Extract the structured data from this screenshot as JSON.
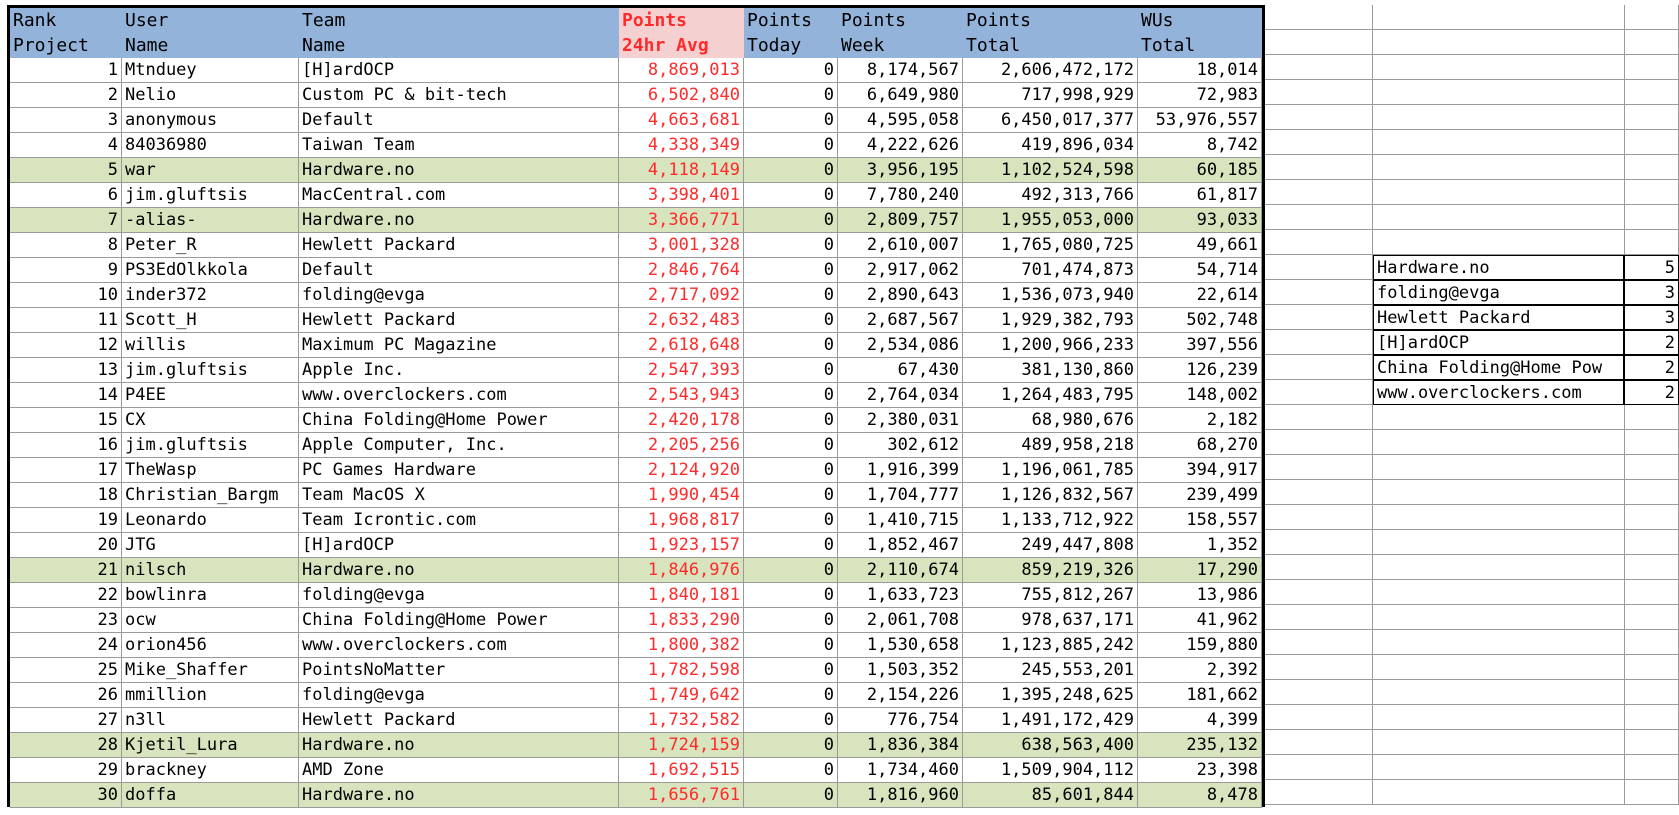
{
  "header": {
    "rank": [
      "Rank",
      "Project"
    ],
    "user": [
      "User",
      "Name"
    ],
    "team": [
      "Team",
      "Name"
    ],
    "pts24": [
      "Points",
      "24hr Avg"
    ],
    "today": [
      "Points",
      "Today"
    ],
    "week": [
      "Points",
      "Week"
    ],
    "total": [
      "Points",
      "Total"
    ],
    "wus": [
      "WUs",
      "Total"
    ]
  },
  "rows": [
    {
      "rank": "1",
      "user": "Mtnduey",
      "team": "[H]ardOCP",
      "pts24": "8,869,013",
      "today": "0",
      "week": "8,174,567",
      "total": "2,606,472,172",
      "wus": "18,014",
      "hl": false
    },
    {
      "rank": "2",
      "user": "Nelio",
      "team": "Custom PC & bit-tech",
      "pts24": "6,502,840",
      "today": "0",
      "week": "6,649,980",
      "total": "717,998,929",
      "wus": "72,983",
      "hl": false
    },
    {
      "rank": "3",
      "user": "anonymous",
      "team": "Default",
      "pts24": "4,663,681",
      "today": "0",
      "week": "4,595,058",
      "total": "6,450,017,377",
      "wus": "53,976,557",
      "hl": false
    },
    {
      "rank": "4",
      "user": "84036980",
      "team": "Taiwan Team",
      "pts24": "4,338,349",
      "today": "0",
      "week": "4,222,626",
      "total": "419,896,034",
      "wus": "8,742",
      "hl": false
    },
    {
      "rank": "5",
      "user": "war",
      "team": "Hardware.no",
      "pts24": "4,118,149",
      "today": "0",
      "week": "3,956,195",
      "total": "1,102,524,598",
      "wus": "60,185",
      "hl": true
    },
    {
      "rank": "6",
      "user": "jim.gluftsis",
      "team": "MacCentral.com",
      "pts24": "3,398,401",
      "today": "0",
      "week": "7,780,240",
      "total": "492,313,766",
      "wus": "61,817",
      "hl": false
    },
    {
      "rank": "7",
      "user": "-alias-",
      "team": "Hardware.no",
      "pts24": "3,366,771",
      "today": "0",
      "week": "2,809,757",
      "total": "1,955,053,000",
      "wus": "93,033",
      "hl": true
    },
    {
      "rank": "8",
      "user": "Peter_R",
      "team": "Hewlett Packard",
      "pts24": "3,001,328",
      "today": "0",
      "week": "2,610,007",
      "total": "1,765,080,725",
      "wus": "49,661",
      "hl": false
    },
    {
      "rank": "9",
      "user": "PS3EdOlkkola",
      "team": "Default",
      "pts24": "2,846,764",
      "today": "0",
      "week": "2,917,062",
      "total": "701,474,873",
      "wus": "54,714",
      "hl": false
    },
    {
      "rank": "10",
      "user": "inder372",
      "team": "folding@evga",
      "pts24": "2,717,092",
      "today": "0",
      "week": "2,890,643",
      "total": "1,536,073,940",
      "wus": "22,614",
      "hl": false
    },
    {
      "rank": "11",
      "user": "Scott_H",
      "team": "Hewlett Packard",
      "pts24": "2,632,483",
      "today": "0",
      "week": "2,687,567",
      "total": "1,929,382,793",
      "wus": "502,748",
      "hl": false
    },
    {
      "rank": "12",
      "user": "willis",
      "team": "Maximum PC Magazine",
      "pts24": "2,618,648",
      "today": "0",
      "week": "2,534,086",
      "total": "1,200,966,233",
      "wus": "397,556",
      "hl": false
    },
    {
      "rank": "13",
      "user": "jim.gluftsis",
      "team": "Apple Inc.",
      "pts24": "2,547,393",
      "today": "0",
      "week": "67,430",
      "total": "381,130,860",
      "wus": "126,239",
      "hl": false
    },
    {
      "rank": "14",
      "user": "P4EE",
      "team": "www.overclockers.com",
      "pts24": "2,543,943",
      "today": "0",
      "week": "2,764,034",
      "total": "1,264,483,795",
      "wus": "148,002",
      "hl": false
    },
    {
      "rank": "15",
      "user": "CX",
      "team": "China Folding@Home Power",
      "pts24": "2,420,178",
      "today": "0",
      "week": "2,380,031",
      "total": "68,980,676",
      "wus": "2,182",
      "hl": false
    },
    {
      "rank": "16",
      "user": "jim.gluftsis",
      "team": "Apple Computer, Inc.",
      "pts24": "2,205,256",
      "today": "0",
      "week": "302,612",
      "total": "489,958,218",
      "wus": "68,270",
      "hl": false
    },
    {
      "rank": "17",
      "user": "TheWasp",
      "team": "PC Games Hardware",
      "pts24": "2,124,920",
      "today": "0",
      "week": "1,916,399",
      "total": "1,196,061,785",
      "wus": "394,917",
      "hl": false
    },
    {
      "rank": "18",
      "user": "Christian_Bargm",
      "team": "Team MacOS X",
      "pts24": "1,990,454",
      "today": "0",
      "week": "1,704,777",
      "total": "1,126,832,567",
      "wus": "239,499",
      "hl": false
    },
    {
      "rank": "19",
      "user": "Leonardo",
      "team": "Team Icrontic.com",
      "pts24": "1,968,817",
      "today": "0",
      "week": "1,410,715",
      "total": "1,133,712,922",
      "wus": "158,557",
      "hl": false
    },
    {
      "rank": "20",
      "user": "JTG",
      "team": "[H]ardOCP",
      "pts24": "1,923,157",
      "today": "0",
      "week": "1,852,467",
      "total": "249,447,808",
      "wus": "1,352",
      "hl": false
    },
    {
      "rank": "21",
      "user": "nilsch",
      "team": "Hardware.no",
      "pts24": "1,846,976",
      "today": "0",
      "week": "2,110,674",
      "total": "859,219,326",
      "wus": "17,290",
      "hl": true
    },
    {
      "rank": "22",
      "user": "bowlinra",
      "team": "folding@evga",
      "pts24": "1,840,181",
      "today": "0",
      "week": "1,633,723",
      "total": "755,812,267",
      "wus": "13,986",
      "hl": false
    },
    {
      "rank": "23",
      "user": "ocw",
      "team": "China Folding@Home Power",
      "pts24": "1,833,290",
      "today": "0",
      "week": "2,061,708",
      "total": "978,637,171",
      "wus": "41,962",
      "hl": false
    },
    {
      "rank": "24",
      "user": "orion456",
      "team": "www.overclockers.com",
      "pts24": "1,800,382",
      "today": "0",
      "week": "1,530,658",
      "total": "1,123,885,242",
      "wus": "159,880",
      "hl": false
    },
    {
      "rank": "25",
      "user": "Mike_Shaffer",
      "team": "PointsNoMatter",
      "pts24": "1,782,598",
      "today": "0",
      "week": "1,503,352",
      "total": "245,553,201",
      "wus": "2,392",
      "hl": false
    },
    {
      "rank": "26",
      "user": "mmillion",
      "team": "folding@evga",
      "pts24": "1,749,642",
      "today": "0",
      "week": "2,154,226",
      "total": "1,395,248,625",
      "wus": "181,662",
      "hl": false
    },
    {
      "rank": "27",
      "user": "n3ll",
      "team": "Hewlett Packard",
      "pts24": "1,732,582",
      "today": "0",
      "week": "776,754",
      "total": "1,491,172,429",
      "wus": "4,399",
      "hl": false
    },
    {
      "rank": "28",
      "user": "Kjetil_Lura",
      "team": "Hardware.no",
      "pts24": "1,724,159",
      "today": "0",
      "week": "1,836,384",
      "total": "638,563,400",
      "wus": "235,132",
      "hl": true
    },
    {
      "rank": "29",
      "user": "brackney",
      "team": "AMD Zone",
      "pts24": "1,692,515",
      "today": "0",
      "week": "1,734,460",
      "total": "1,509,904,112",
      "wus": "23,398",
      "hl": false
    },
    {
      "rank": "30",
      "user": "doffa",
      "team": "Hardware.no",
      "pts24": "1,656,761",
      "today": "0",
      "week": "1,816,960",
      "total": "85,601,844",
      "wus": "8,478",
      "hl": true
    }
  ],
  "team_counts": [
    {
      "team": "Hardware.no",
      "count": "5"
    },
    {
      "team": "folding@evga",
      "count": "3"
    },
    {
      "team": "Hewlett Packard",
      "count": "3"
    },
    {
      "team": "[H]ardOCP",
      "count": "2"
    },
    {
      "team": "China Folding@Home Pow",
      "count": "2"
    },
    {
      "team": "www.overclockers.com",
      "count": "2"
    }
  ],
  "colors": {
    "header_bg": "#93b3da",
    "highlight_row": "#d7e4bd",
    "points24_header_bg": "#f4d0d0",
    "points24_text": "#ff2a2a"
  }
}
